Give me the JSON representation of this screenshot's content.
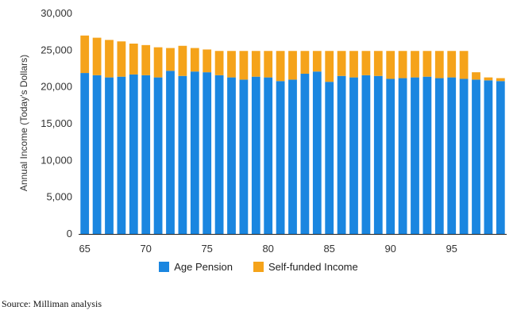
{
  "chart_data": {
    "type": "bar",
    "stacked": true,
    "title": "",
    "xlabel": "",
    "ylabel": "Annual Income (Today's Dollars)",
    "ylim": [
      0,
      30000
    ],
    "yticks": [
      0,
      5000,
      10000,
      15000,
      20000,
      25000,
      30000
    ],
    "ytick_labels": [
      "0",
      "5,000",
      "10,000",
      "15,000",
      "20,000",
      "25,000",
      "30,000"
    ],
    "xticks": [
      65,
      70,
      75,
      80,
      85,
      90,
      95
    ],
    "x": [
      65,
      66,
      67,
      68,
      69,
      70,
      71,
      72,
      73,
      74,
      75,
      76,
      77,
      78,
      79,
      80,
      81,
      82,
      83,
      84,
      85,
      86,
      87,
      88,
      89,
      90,
      91,
      92,
      93,
      94,
      95,
      96,
      97,
      98,
      99
    ],
    "grid": false,
    "legend_position": "bottom",
    "series": [
      {
        "name": "Age Pension",
        "color": "#1a86e0",
        "values": [
          21900,
          21600,
          21300,
          21400,
          21700,
          21600,
          21300,
          22200,
          21500,
          22100,
          22000,
          21600,
          21300,
          21000,
          21400,
          21300,
          20800,
          21000,
          21800,
          22100,
          20700,
          21500,
          21300,
          21600,
          21500,
          21100,
          21200,
          21300,
          21400,
          21200,
          21300,
          21100,
          21000,
          20900,
          20800
        ]
      },
      {
        "name": "Self-funded Income",
        "color": "#f5a31a",
        "values": [
          5100,
          5100,
          5100,
          4800,
          4200,
          4100,
          4100,
          3100,
          4100,
          3200,
          3100,
          3300,
          3600,
          3900,
          3500,
          3600,
          4100,
          3900,
          3100,
          2800,
          4200,
          3400,
          3600,
          3300,
          3400,
          3800,
          3700,
          3600,
          3500,
          3700,
          3600,
          3800,
          1000,
          400,
          400
        ]
      }
    ]
  },
  "source": "Source: Milliman analysis"
}
